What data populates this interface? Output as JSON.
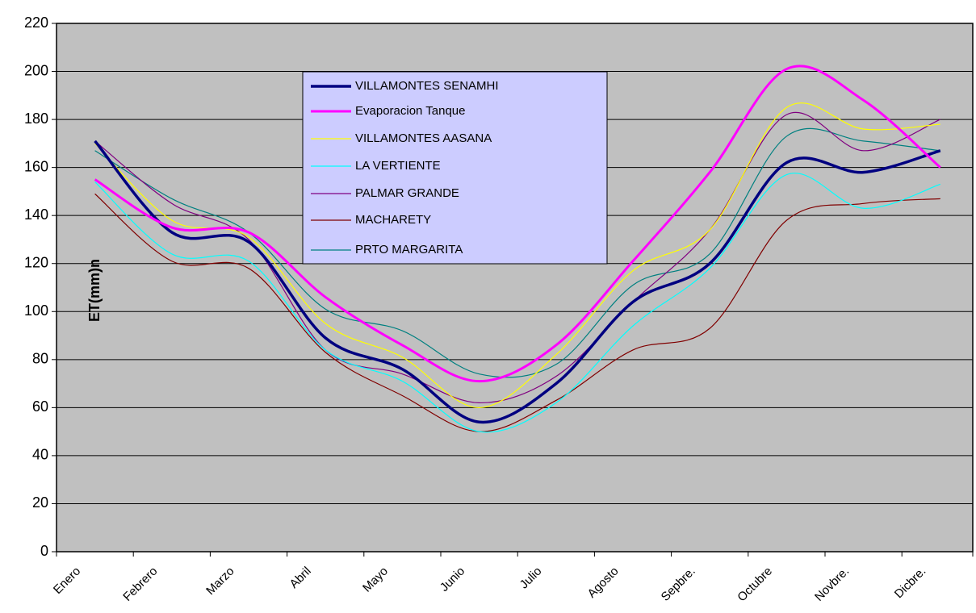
{
  "chart_data": {
    "type": "line",
    "y_label": "ET(mm)n",
    "categories": [
      "Enero",
      "Febrero",
      "Marzo",
      "Abril",
      "Mayo",
      "Junio",
      "Julio",
      "Agosto",
      "Sepbre.",
      "Octubre",
      "Novbre.",
      "Dicbre."
    ],
    "series": [
      {
        "name": "VILLAMONTES SENAMHI",
        "color": "#000080",
        "width": 3.5,
        "values": [
          171,
          133,
          129,
          89,
          76,
          54,
          70,
          104,
          120,
          162,
          158,
          167
        ]
      },
      {
        "name": "Evaporacion Tanque",
        "color": "#ff00ff",
        "width": 3,
        "values": [
          155,
          135,
          133,
          106,
          86,
          71,
          86,
          121,
          158,
          201,
          188,
          160
        ]
      },
      {
        "name": "VILLAMONTES AASANA",
        "color": "#ffff00",
        "width": 1.2,
        "values": [
          170,
          138,
          131,
          95,
          81,
          60,
          82,
          117,
          134,
          185,
          176,
          178
        ]
      },
      {
        "name": "LA VERTIENTE",
        "color": "#00ffff",
        "width": 1.2,
        "values": [
          154,
          124,
          121,
          84,
          71,
          50,
          62,
          94,
          118,
          157,
          143,
          153
        ]
      },
      {
        "name": "PALMAR GRANDE",
        "color": "#800080",
        "width": 1.2,
        "values": [
          171,
          145,
          130,
          84,
          74,
          62,
          73,
          104,
          134,
          182,
          167,
          180
        ]
      },
      {
        "name": "MACHARETY",
        "color": "#800000",
        "width": 1.2,
        "values": [
          149,
          121,
          118,
          83,
          65,
          50,
          63,
          84,
          93,
          138,
          145,
          147
        ]
      },
      {
        "name": "PRTO MARGARITA",
        "color": "#008080",
        "width": 1.2,
        "values": [
          167,
          147,
          133,
          101,
          92,
          74,
          78,
          111,
          124,
          173,
          171,
          167
        ]
      }
    ],
    "ylim": [
      0,
      220
    ],
    "yticks": [
      0,
      20,
      40,
      60,
      80,
      100,
      120,
      140,
      160,
      180,
      200,
      220
    ],
    "grid": true
  }
}
